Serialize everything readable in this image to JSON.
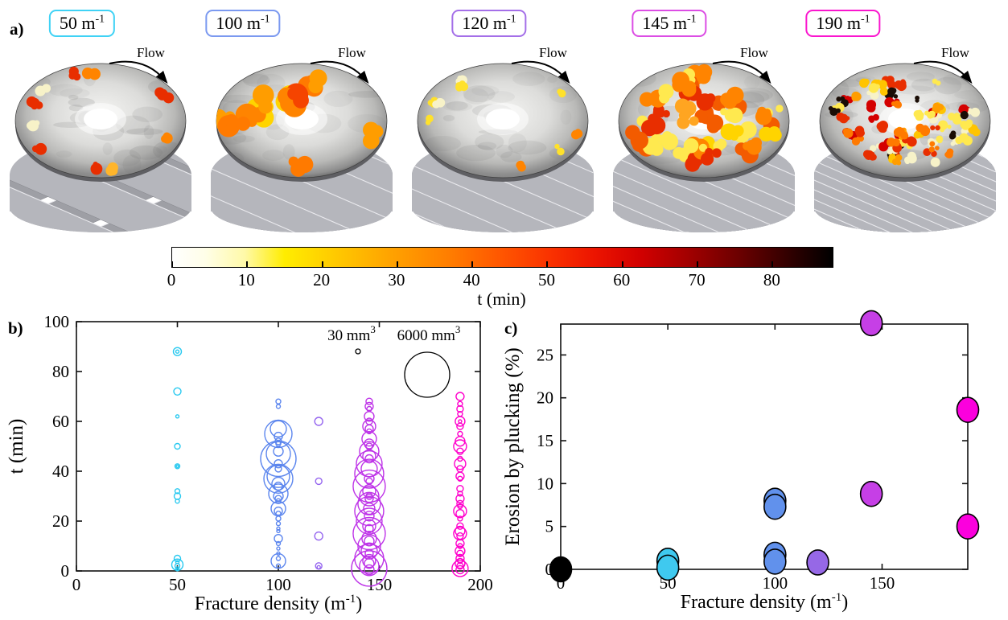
{
  "figure": {
    "panel_a_label": "a)",
    "panel_b_label": "b)",
    "panel_c_label": "c)"
  },
  "panel_a": {
    "flow_label": "Flow",
    "specimens": [
      {
        "density_label": "50 m⁻¹",
        "color": "#3FD2F5",
        "seed": 7,
        "patch_count": 10,
        "patch_mode": "rim",
        "patch_size": 6,
        "grid_step": 52,
        "dark_rim": false,
        "palette": [
          "#F7F2C8",
          "#FFB52B",
          "#FF8400",
          "#E82E00",
          "#1A0D05",
          "#F7F2C8",
          "#F7F2C8"
        ]
      },
      {
        "density_label": "100 m⁻¹",
        "color": "#7B99F0",
        "seed": 12,
        "patch_count": 15,
        "patch_mode": "band",
        "patch_size": 12,
        "grid_step": 31,
        "dark_rim": true,
        "palette": [
          "#FF9D00",
          "#FF7A00",
          "#F54400",
          "#E82E00",
          "#FFD400",
          "#FF8400"
        ]
      },
      {
        "density_label": "120 m⁻¹",
        "color": "#A46FE8",
        "seed": 21,
        "patch_count": 9,
        "patch_mode": "rim",
        "patch_size": 5,
        "grid_step": 27,
        "dark_rim": false,
        "palette": [
          "#F7F2C8",
          "#F7F2C8",
          "#F7F2C8",
          "#FFE12B",
          "#FF8400",
          "#E81500"
        ]
      },
      {
        "density_label": "145 m⁻¹",
        "color": "#DC4DE4",
        "seed": 33,
        "patch_count": 40,
        "patch_mode": "all",
        "patch_size": 9,
        "grid_step": 17,
        "dark_rim": true,
        "palette": [
          "#FFD400",
          "#FFA521",
          "#FF8400",
          "#F35B00",
          "#E82E00",
          "#FFE94F"
        ]
      },
      {
        "density_label": "190 m⁻¹",
        "color": "#FA16CE",
        "seed": 47,
        "patch_count": 78,
        "patch_mode": "all",
        "patch_size": 5,
        "grid_step": 11,
        "dark_rim": true,
        "palette": [
          "#F7F2C8",
          "#FFE94F",
          "#FFC400",
          "#FF9D00",
          "#FF7A00",
          "#E82E00",
          "#D40000",
          "#F7F2C8",
          "#1A0D05"
        ]
      }
    ]
  },
  "colorbar": {
    "label": "t (min)",
    "ticks": [
      0,
      10,
      20,
      30,
      40,
      50,
      60,
      70,
      80
    ],
    "max": 88,
    "gradient": [
      [
        "0",
        "#FFFFFF"
      ],
      [
        "5",
        "#FFFEE8"
      ],
      [
        "11",
        "#FFF9A8"
      ],
      [
        "17",
        "#FFED00"
      ],
      [
        "25",
        "#FFC800"
      ],
      [
        "33",
        "#FFA300"
      ],
      [
        "42",
        "#FF7D00"
      ],
      [
        "50",
        "#FF5500"
      ],
      [
        "57",
        "#FA3300"
      ],
      [
        "64",
        "#EC1400"
      ],
      [
        "71",
        "#D10000"
      ],
      [
        "78",
        "#A30000"
      ],
      [
        "86",
        "#6A0000"
      ],
      [
        "93",
        "#340000"
      ],
      [
        "100",
        "#000000"
      ]
    ]
  },
  "chart_data": [
    {
      "type": "scatter",
      "panel": "b",
      "xlabel": "Fracture density (m⁻¹)",
      "ylabel": "t (min)",
      "xlim": [
        0,
        200
      ],
      "ylim": [
        0,
        100
      ],
      "xticks": [
        0,
        50,
        100,
        150,
        200
      ],
      "yticks": [
        0,
        20,
        40,
        60,
        80,
        100
      ],
      "marker": "open-circle",
      "legend": [
        {
          "label": "30 mm³",
          "radius_px": 3
        },
        {
          "label": "6000 mm³",
          "radius_px": 28
        }
      ],
      "series": [
        {
          "name": "50 m⁻¹",
          "color": "#29C9F0",
          "x": 50,
          "bubbles_t_r": [
            [
              88,
              5
            ],
            [
              88,
              2
            ],
            [
              72,
              4.5
            ],
            [
              62,
              2
            ],
            [
              50,
              3.5
            ],
            [
              42,
              3
            ],
            [
              42,
              1.5
            ],
            [
              32,
              3
            ],
            [
              30,
              4
            ],
            [
              28,
              2.5
            ],
            [
              5,
              4
            ],
            [
              3.5,
              2
            ],
            [
              2.5,
              7
            ],
            [
              2,
              3
            ],
            [
              1,
              2
            ],
            [
              0.5,
              1.5
            ]
          ]
        },
        {
          "name": "100 m⁻¹",
          "color": "#5C86EE",
          "x": 100,
          "bubbles_t_r": [
            [
              68,
              3
            ],
            [
              66,
              2.5
            ],
            [
              57,
              10
            ],
            [
              55,
              17
            ],
            [
              54,
              5
            ],
            [
              52,
              4
            ],
            [
              51,
              3
            ],
            [
              48,
              6
            ],
            [
              47,
              15
            ],
            [
              45,
              22
            ],
            [
              43,
              5
            ],
            [
              41,
              4
            ],
            [
              38,
              14
            ],
            [
              37,
              18
            ],
            [
              35,
              8
            ],
            [
              34,
              5
            ],
            [
              31,
              12
            ],
            [
              30,
              6
            ],
            [
              29,
              4
            ],
            [
              28,
              3
            ],
            [
              25,
              9
            ],
            [
              24,
              5
            ],
            [
              23,
              3
            ],
            [
              21,
              3
            ],
            [
              19,
              2.5
            ],
            [
              17,
              2
            ],
            [
              16,
              2
            ],
            [
              13,
              5
            ],
            [
              11,
              2.5
            ],
            [
              9,
              2
            ],
            [
              7,
              2
            ],
            [
              5,
              2.5
            ],
            [
              4,
              9
            ],
            [
              2,
              2.5
            ]
          ]
        },
        {
          "name": "120 m⁻¹",
          "color": "#9565EF",
          "x": 120,
          "bubbles_t_r": [
            [
              60,
              5
            ],
            [
              36,
              4
            ],
            [
              14,
              5
            ],
            [
              2,
              4
            ],
            [
              1.5,
              2
            ]
          ]
        },
        {
          "name": "145 m⁻¹",
          "color": "#BE33E8",
          "x": 145,
          "bubbles_t_r": [
            [
              68,
              4
            ],
            [
              66,
              5
            ],
            [
              65,
              3
            ],
            [
              62,
              6
            ],
            [
              60,
              4
            ],
            [
              58,
              8
            ],
            [
              57,
              5
            ],
            [
              56,
              3
            ],
            [
              53,
              9
            ],
            [
              51,
              6
            ],
            [
              50,
              4
            ],
            [
              48,
              12
            ],
            [
              46,
              8
            ],
            [
              45,
              5
            ],
            [
              43,
              16
            ],
            [
              41,
              10
            ],
            [
              39,
              18
            ],
            [
              37,
              6
            ],
            [
              36,
              4
            ],
            [
              34,
              20
            ],
            [
              32,
              8
            ],
            [
              30,
              12
            ],
            [
              30,
              4
            ],
            [
              29,
              5
            ],
            [
              27,
              14
            ],
            [
              25,
              7
            ],
            [
              24,
              18
            ],
            [
              22,
              6
            ],
            [
              20,
              16
            ],
            [
              18,
              8
            ],
            [
              17,
              5
            ],
            [
              15,
              20
            ],
            [
              13,
              9
            ],
            [
              12,
              6
            ],
            [
              10,
              14
            ],
            [
              8,
              10
            ],
            [
              7,
              5
            ],
            [
              5,
              18
            ],
            [
              4,
              8
            ],
            [
              3,
              6
            ],
            [
              2,
              12
            ],
            [
              1,
              22
            ],
            [
              0.5,
              6
            ]
          ]
        },
        {
          "name": "190 m⁻¹",
          "color": "#FF00CC",
          "x": 190,
          "bubbles_t_r": [
            [
              70,
              5
            ],
            [
              67,
              3
            ],
            [
              65,
              4
            ],
            [
              63,
              3
            ],
            [
              60,
              6
            ],
            [
              60,
              2
            ],
            [
              58,
              4
            ],
            [
              55,
              3
            ],
            [
              52,
              6
            ],
            [
              50,
              8
            ],
            [
              48,
              4
            ],
            [
              45,
              3
            ],
            [
              43,
              7
            ],
            [
              41,
              4
            ],
            [
              38,
              5
            ],
            [
              37,
              3
            ],
            [
              33,
              4
            ],
            [
              31,
              3
            ],
            [
              29,
              5
            ],
            [
              27,
              4
            ],
            [
              26,
              3
            ],
            [
              24,
              8
            ],
            [
              23,
              5
            ],
            [
              21,
              3
            ],
            [
              18,
              4
            ],
            [
              16,
              6
            ],
            [
              15,
              8
            ],
            [
              14,
              4
            ],
            [
              11,
              5
            ],
            [
              10,
              3
            ],
            [
              8,
              6
            ],
            [
              7,
              4
            ],
            [
              5,
              5
            ],
            [
              4,
              3
            ],
            [
              3,
              6
            ],
            [
              2,
              4
            ],
            [
              1,
              10
            ],
            [
              0.5,
              5
            ]
          ]
        }
      ]
    },
    {
      "type": "scatter",
      "panel": "c",
      "xlabel": "Fracture density (m⁻¹)",
      "ylabel": "Erosion by plucking (%)",
      "xlim": [
        0,
        190
      ],
      "ylim": [
        0,
        28.6
      ],
      "xticks": [
        0,
        50,
        100,
        150
      ],
      "yticks": [
        0,
        5,
        10,
        15,
        20,
        25
      ],
      "marker": "filled-circle",
      "points": [
        {
          "x": 0,
          "y": 0,
          "color": "#000000"
        },
        {
          "x": 50,
          "y": 1.0,
          "color": "#3FC9EF"
        },
        {
          "x": 50,
          "y": 0.2,
          "color": "#3FC9EF"
        },
        {
          "x": 100,
          "y": 8.0,
          "color": "#6191EC"
        },
        {
          "x": 100,
          "y": 7.3,
          "color": "#6191EC"
        },
        {
          "x": 100,
          "y": 1.7,
          "color": "#6191EC"
        },
        {
          "x": 100,
          "y": 0.9,
          "color": "#6191EC"
        },
        {
          "x": 120,
          "y": 0.8,
          "color": "#9668E6"
        },
        {
          "x": 145,
          "y": 28.7,
          "color": "#C63FE6"
        },
        {
          "x": 145,
          "y": 8.8,
          "color": "#C63FE6"
        },
        {
          "x": 190,
          "y": 18.6,
          "color": "#FB00DD"
        },
        {
          "x": 190,
          "y": 5.0,
          "color": "#FB00DD"
        }
      ]
    }
  ]
}
